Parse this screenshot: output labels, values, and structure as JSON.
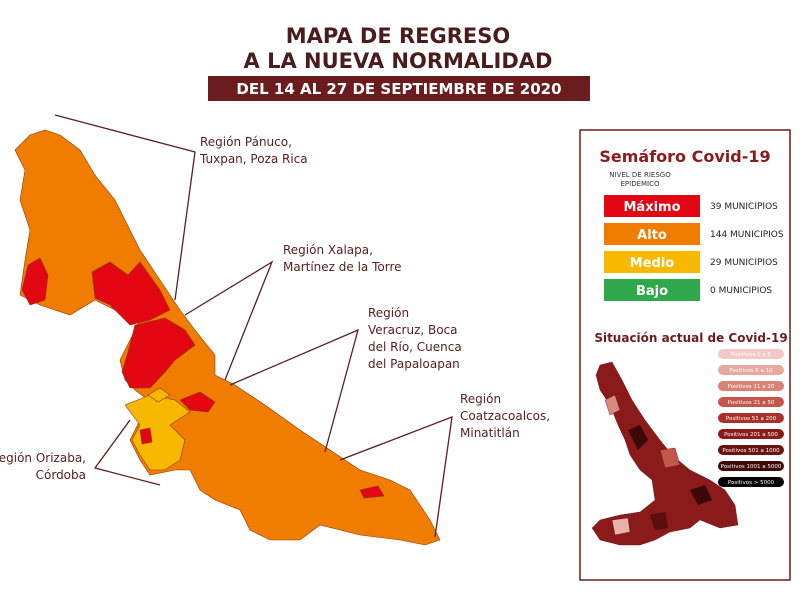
{
  "header": {
    "title_lines": [
      "MAPA DE REGRESO",
      "A LA NUEVA NORMALIDAD"
    ],
    "dates": "DEL 14 AL 27 DE SEPTIEMBRE DE 2020"
  },
  "regions": [
    {
      "lines": [
        "Región Pánuco,",
        "Tuxpan, Poza Rica"
      ]
    },
    {
      "lines": [
        "Región Xalapa,",
        "Martínez de la Torre"
      ]
    },
    {
      "lines": [
        "Región",
        "Veracruz, Boca",
        "del Río, Cuenca",
        "del Papaloapan"
      ]
    },
    {
      "lines": [
        "Región",
        "Coatzacoalcos,",
        "Minatitlán"
      ]
    },
    {
      "lines": [
        "Región Orizaba,",
        "Córdoba"
      ]
    }
  ],
  "semaforo": {
    "title": "Semáforo Covid-19",
    "subtitle_lines": [
      "NIVEL DE RIESGO",
      "EPIDÉMICO"
    ],
    "levels": [
      {
        "label": "Máximo",
        "count": "39 MUNICIPIOS"
      },
      {
        "label": "Alto",
        "count": "144 MUNICIPIOS"
      },
      {
        "label": "Medio",
        "count": "29 MUNICIPIOS"
      },
      {
        "label": "Bajo",
        "count": "0 MUNICIPIOS"
      }
    ]
  },
  "situacion": {
    "title": "Situación actual de Covid-19",
    "legend": [
      "Positivos 1 a 5",
      "Positivos 6 a 10",
      "Positivos 11 a 20",
      "Positivos 21 a 50",
      "Positivos 51 a 200",
      "Positivos 201 a 500",
      "Positivos 501 a 1000",
      "Positivos 1001 a 5000",
      "Positivos > 5000"
    ]
  }
}
